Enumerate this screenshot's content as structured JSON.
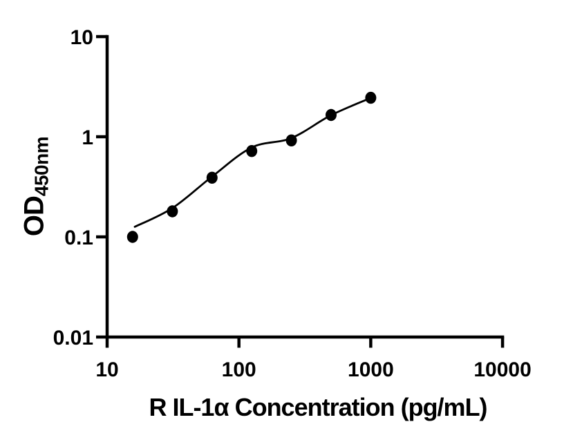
{
  "figure": {
    "background_color": "#ffffff",
    "axis_color": "#000000",
    "marker_color": "#000000",
    "fit_line_color": "#000000"
  },
  "chart_data": {
    "type": "scatter",
    "title": "",
    "xlabel": "R IL-1α Concentration (pg/mL)",
    "ylabel": "OD",
    "ylabel_sub": "450nm",
    "x_scale": "log",
    "y_scale": "log",
    "xlim": [
      10,
      10000
    ],
    "ylim": [
      0.01,
      10
    ],
    "grid": false,
    "legend": "none",
    "x_ticks": {
      "values": [
        10,
        100,
        1000,
        10000
      ],
      "labels": [
        "10",
        "100",
        "1000",
        "10000"
      ]
    },
    "y_ticks": {
      "values": [
        10,
        1,
        0.1,
        0.01
      ],
      "labels": [
        "10",
        "1",
        "0.1",
        "0.01"
      ]
    },
    "series": [
      {
        "name": "standard_points",
        "type": "scatter",
        "x": [
          15.6,
          31.25,
          62.5,
          125,
          250,
          500,
          1000
        ],
        "y": [
          0.1,
          0.18,
          0.39,
          0.72,
          0.92,
          1.65,
          2.45
        ]
      },
      {
        "name": "fit_curve",
        "type": "line",
        "x": [
          16.2,
          31.5,
          62.5,
          125,
          250,
          500,
          1000
        ],
        "y": [
          0.126,
          0.195,
          0.4,
          0.78,
          0.97,
          1.64,
          2.44
        ]
      }
    ]
  }
}
